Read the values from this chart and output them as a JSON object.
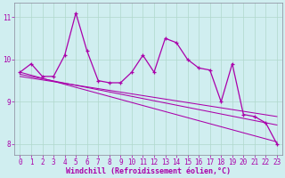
{
  "xlabel": "Windchill (Refroidissement éolien,°C)",
  "background_color": "#d0eef0",
  "line_color": "#aa00aa",
  "x_values": [
    0,
    1,
    2,
    3,
    4,
    5,
    6,
    7,
    8,
    9,
    10,
    11,
    12,
    13,
    14,
    15,
    16,
    17,
    18,
    19,
    20,
    21,
    22,
    23
  ],
  "main_y": [
    9.7,
    9.9,
    9.6,
    9.6,
    10.1,
    11.1,
    10.2,
    9.5,
    9.45,
    9.45,
    9.7,
    10.1,
    9.7,
    10.5,
    10.4,
    10.0,
    9.8,
    9.75,
    9.0,
    9.9,
    8.7,
    8.65,
    8.5,
    8.0
  ],
  "reg_lines": [
    [
      9.7,
      8.05
    ],
    [
      9.65,
      8.45
    ],
    [
      9.6,
      8.65
    ]
  ],
  "ylim": [
    7.75,
    11.35
  ],
  "xlim": [
    -0.5,
    23.5
  ],
  "yticks": [
    8,
    9,
    10,
    11
  ],
  "xticks": [
    0,
    1,
    2,
    3,
    4,
    5,
    6,
    7,
    8,
    9,
    10,
    11,
    12,
    13,
    14,
    15,
    16,
    17,
    18,
    19,
    20,
    21,
    22,
    23
  ],
  "grid_color": "#b0d8cc",
  "tick_fontsize": 5.5,
  "xlabel_fontsize": 6,
  "markersize": 3.5,
  "linewidth": 0.9,
  "reg_linewidth": 0.75
}
